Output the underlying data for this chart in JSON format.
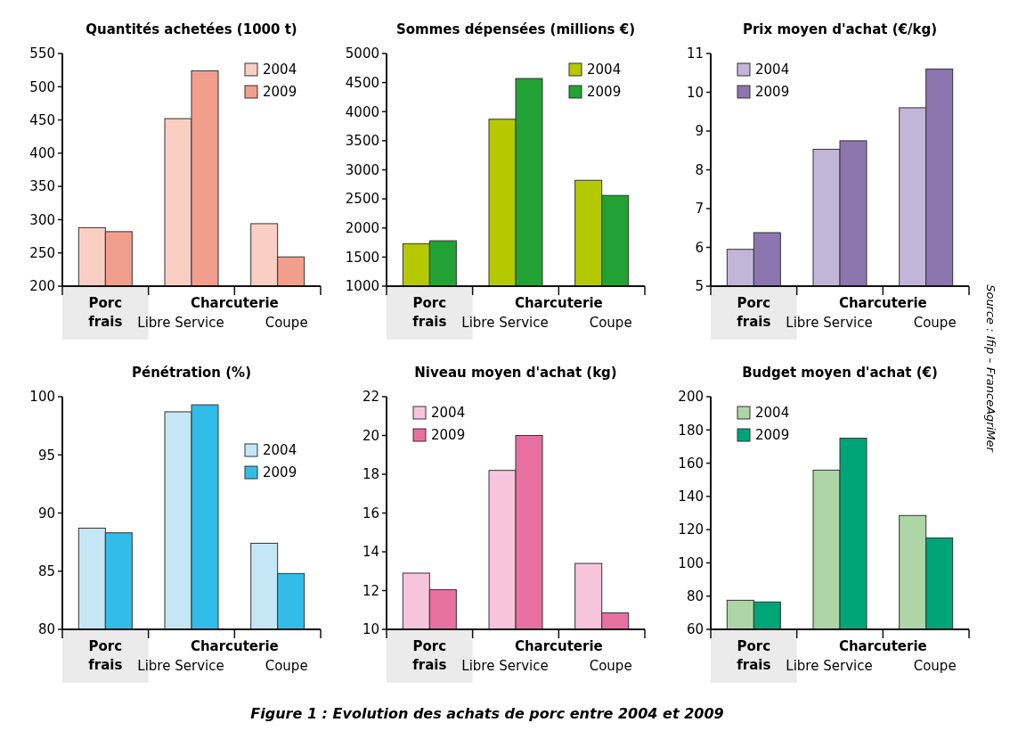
{
  "chart_data": [
    {
      "type": "bar",
      "title": "Quantités achetées (1000 t)",
      "categories": [
        "Porc frais",
        "Libre Service",
        "Coupe"
      ],
      "annotations": [
        "Charcuterie"
      ],
      "ylim": [
        200,
        550
      ],
      "yticks": [
        200,
        250,
        300,
        350,
        400,
        450,
        500,
        550
      ],
      "legend": "top right",
      "series": [
        {
          "name": "2004",
          "color": "#f9cfc3",
          "values": [
            288,
            452,
            294
          ]
        },
        {
          "name": "2009",
          "color": "#f29e8d",
          "values": [
            282,
            524,
            244
          ]
        }
      ]
    },
    {
      "type": "bar",
      "title": "Sommes dépensées (millions €)",
      "categories": [
        "Porc frais",
        "Libre Service",
        "Coupe"
      ],
      "annotations": [
        "Charcuterie"
      ],
      "ylim": [
        1000,
        5000
      ],
      "yticks": [
        1000,
        1500,
        2000,
        2500,
        3000,
        3500,
        4000,
        4500,
        5000
      ],
      "legend": "top right",
      "series": [
        {
          "name": "2004",
          "color": "#b5c900",
          "values": [
            1730,
            3870,
            2820
          ]
        },
        {
          "name": "2009",
          "color": "#22a135",
          "values": [
            1780,
            4570,
            2560
          ]
        }
      ]
    },
    {
      "type": "bar",
      "title": "Prix moyen d'achat (€/kg)",
      "categories": [
        "Porc frais",
        "Libre Service",
        "Coupe"
      ],
      "annotations": [
        "Charcuterie"
      ],
      "ylim": [
        5,
        11
      ],
      "yticks": [
        5,
        6,
        7,
        8,
        9,
        10,
        11
      ],
      "legend": "top left",
      "series": [
        {
          "name": "2004",
          "color": "#c2b6d8",
          "values": [
            5.95,
            8.53,
            9.6
          ]
        },
        {
          "name": "2009",
          "color": "#8b76b0",
          "values": [
            6.38,
            8.75,
            10.6
          ]
        }
      ]
    },
    {
      "type": "bar",
      "title": "Pénétration (%)",
      "categories": [
        "Porc frais",
        "Libre Service",
        "Coupe"
      ],
      "annotations": [
        "Charcuterie"
      ],
      "ylim": [
        80,
        100
      ],
      "yticks": [
        80,
        85,
        90,
        95,
        100
      ],
      "legend": "right",
      "series": [
        {
          "name": "2004",
          "color": "#c5e6f5",
          "values": [
            88.7,
            98.7,
            87.4
          ]
        },
        {
          "name": "2009",
          "color": "#31bde8",
          "values": [
            88.3,
            99.3,
            84.8
          ]
        }
      ]
    },
    {
      "type": "bar",
      "title": "Niveau moyen d'achat (kg)",
      "categories": [
        "Porc frais",
        "Libre Service",
        "Coupe"
      ],
      "annotations": [
        "Charcuterie"
      ],
      "ylim": [
        10,
        22
      ],
      "yticks": [
        10,
        12,
        14,
        16,
        18,
        20,
        22
      ],
      "legend": "top left",
      "series": [
        {
          "name": "2004",
          "color": "#f6c5dc",
          "values": [
            12.9,
            18.2,
            13.4
          ]
        },
        {
          "name": "2009",
          "color": "#e870a1",
          "values": [
            12.05,
            20.0,
            10.85
          ]
        }
      ]
    },
    {
      "type": "bar",
      "title": "Budget moyen d'achat (€)",
      "categories": [
        "Porc frais",
        "Libre Service",
        "Coupe"
      ],
      "annotations": [
        "Charcuterie",
        "Figure 1 : Evolution des achats de porc entre 2004 et 2009",
        "Source : Ifip – FranceAgriMer"
      ],
      "ylim": [
        60,
        200
      ],
      "yticks": [
        60,
        80,
        100,
        120,
        140,
        160,
        180,
        200
      ],
      "legend": "top left",
      "series": [
        {
          "name": "2004",
          "color": "#aed5a6",
          "values": [
            77.5,
            155.8,
            128.5
          ]
        },
        {
          "name": "2009",
          "color": "#00a577",
          "values": [
            76.5,
            175,
            115
          ]
        }
      ]
    }
  ]
}
